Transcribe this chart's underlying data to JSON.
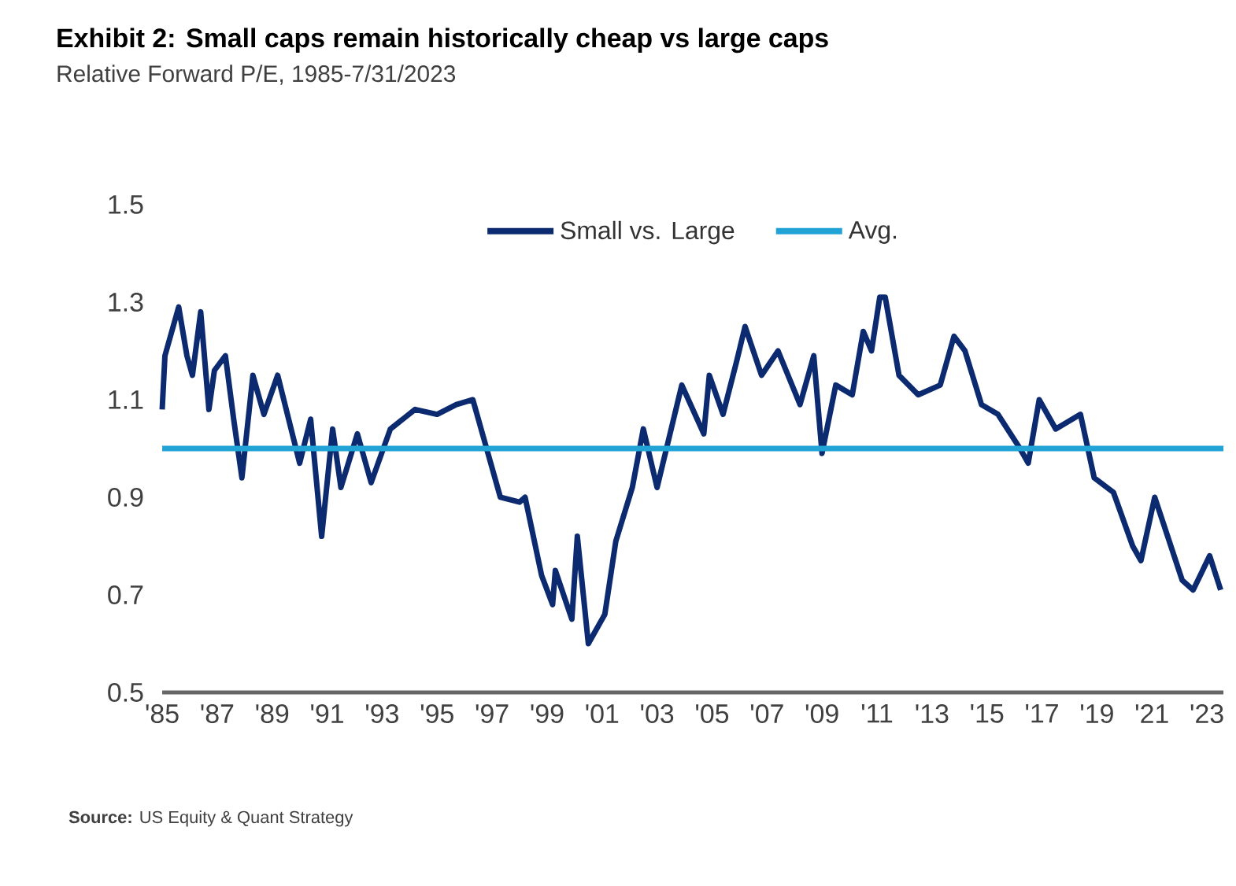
{
  "chart_data": {
    "type": "line",
    "title": "Exhibit 2: Small caps remain historically cheap vs large caps",
    "subtitle": "Relative Forward P/E, 1985-7/31/2023",
    "annotations": [
      "**Source:** US Equity & Quant Strategy"
    ],
    "xlim": [
      1985,
      2023.6
    ],
    "xticks": [
      {
        "value": 1985,
        "label": "'85"
      },
      {
        "value": 1987,
        "label": "'87"
      },
      {
        "value": 1989,
        "label": "'89"
      },
      {
        "value": 1991,
        "label": "'91"
      },
      {
        "value": 1993,
        "label": "'93"
      },
      {
        "value": 1995,
        "label": "'95"
      },
      {
        "value": 1997,
        "label": "'97"
      },
      {
        "value": 1999,
        "label": "'99"
      },
      {
        "value": 2001,
        "label": "'01"
      },
      {
        "value": 2003,
        "label": "'03"
      },
      {
        "value": 2005,
        "label": "'05"
      },
      {
        "value": 2007,
        "label": "'07"
      },
      {
        "value": 2009,
        "label": "'09"
      },
      {
        "value": 2011,
        "label": "'11"
      },
      {
        "value": 2013,
        "label": "'13"
      },
      {
        "value": 2015,
        "label": "'15"
      },
      {
        "value": 2017,
        "label": "'17"
      },
      {
        "value": 2019,
        "label": "'19"
      },
      {
        "value": 2021,
        "label": "'21"
      },
      {
        "value": 2023,
        "label": "'23"
      }
    ],
    "ylim": [
      0.5,
      1.5
    ],
    "yticks": [
      0.5,
      0.7,
      0.9,
      1.1,
      1.3,
      1.5
    ],
    "legend": "top",
    "series": [
      {
        "name": "Small vs. Large",
        "color": "#0b2a6f",
        "x": [
          1985.0,
          1985.1,
          1985.6,
          1985.9,
          1986.1,
          1986.4,
          1986.7,
          1986.9,
          1987.3,
          1987.6,
          1987.9,
          1988.3,
          1988.7,
          1989.2,
          1990.0,
          1990.4,
          1990.8,
          1991.2,
          1991.5,
          1992.1,
          1992.6,
          1993.3,
          1994.2,
          1995.0,
          1995.7,
          1996.3,
          1996.9,
          1997.3,
          1998.0,
          1998.2,
          1998.8,
          1999.2,
          1999.3,
          1999.9,
          2000.1,
          2000.5,
          2001.1,
          2001.5,
          2002.1,
          2002.5,
          2003.0,
          2003.6,
          2003.9,
          2004.7,
          2004.9,
          2005.4,
          2005.9,
          2006.2,
          2006.8,
          2007.4,
          2008.2,
          2008.7,
          2009.0,
          2009.5,
          2010.1,
          2010.5,
          2010.8,
          2011.1,
          2011.3,
          2011.8,
          2012.5,
          2013.3,
          2013.8,
          2014.2,
          2014.8,
          2015.4,
          2016.2,
          2016.5,
          2016.9,
          2017.5,
          2018.4,
          2018.9,
          2019.6,
          2020.3,
          2020.6,
          2021.1,
          2022.1,
          2022.5,
          2023.1,
          2023.5
        ],
        "values": [
          1.08,
          1.19,
          1.29,
          1.19,
          1.15,
          1.28,
          1.08,
          1.16,
          1.19,
          1.06,
          0.94,
          1.15,
          1.07,
          1.15,
          0.97,
          1.06,
          0.82,
          1.04,
          0.92,
          1.03,
          0.93,
          1.04,
          1.08,
          1.07,
          1.09,
          1.1,
          0.98,
          0.9,
          0.89,
          0.9,
          0.74,
          0.68,
          0.75,
          0.65,
          0.82,
          0.6,
          0.66,
          0.81,
          0.92,
          1.04,
          0.92,
          1.06,
          1.13,
          1.03,
          1.15,
          1.07,
          1.18,
          1.25,
          1.15,
          1.2,
          1.09,
          1.19,
          0.99,
          1.13,
          1.11,
          1.24,
          1.2,
          1.31,
          1.31,
          1.15,
          1.11,
          1.13,
          1.23,
          1.2,
          1.09,
          1.07,
          1.0,
          0.97,
          1.1,
          1.04,
          1.07,
          0.94,
          0.91,
          0.8,
          0.77,
          0.9,
          0.73,
          0.71,
          0.78,
          0.71
        ]
      },
      {
        "name": "Avg.",
        "color": "#22a3d6",
        "x": [
          1985,
          2023.6
        ],
        "values": [
          1.0,
          1.0
        ]
      }
    ]
  }
}
